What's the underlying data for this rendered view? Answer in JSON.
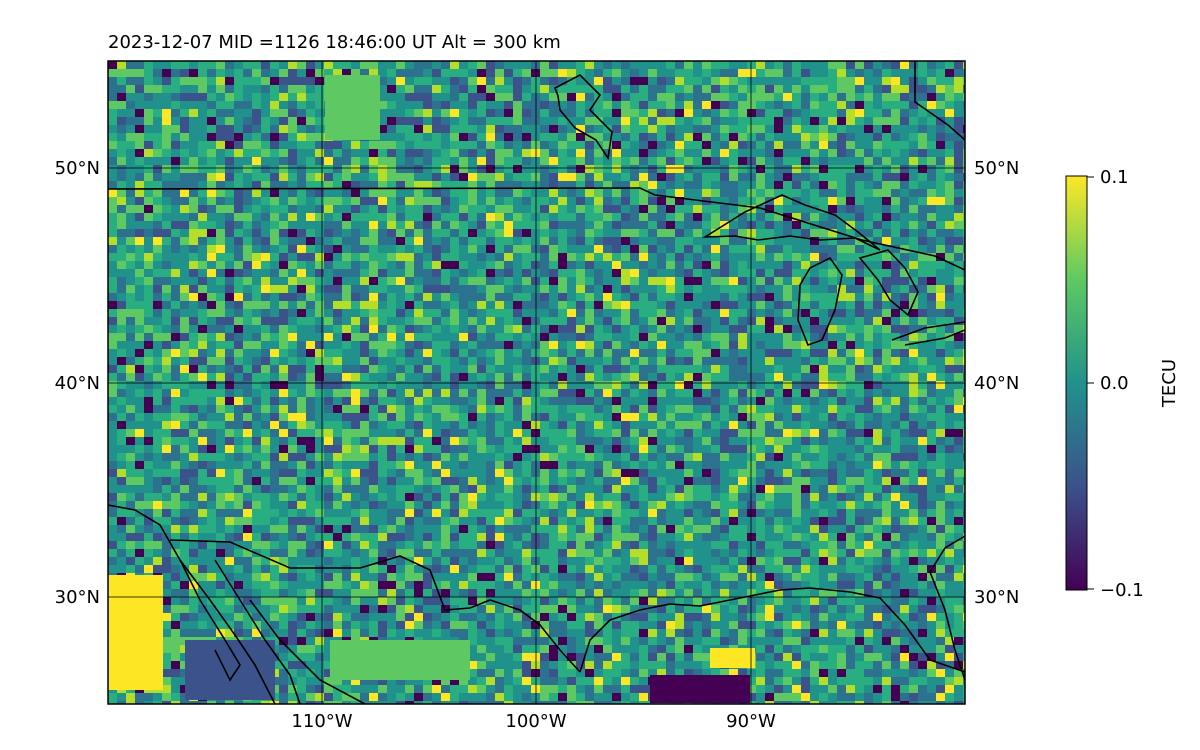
{
  "title": "2023-12-07  MID =1126    18:46:00  UT  Alt = 300 km",
  "lon_labels": [
    "110°W",
    "100°W",
    "90°W"
  ],
  "lat_labels": [
    "50°N",
    "40°N",
    "30°N"
  ],
  "colorbar": {
    "label": "TECU",
    "ticks": [
      "0.1",
      "0.0",
      "−0.1"
    ],
    "range": [
      -0.1,
      0.1
    ],
    "colormap": [
      "#440154",
      "#3b528b",
      "#21918c",
      "#5ec962",
      "#fde725"
    ]
  },
  "map": {
    "projection": "equirectangular",
    "lon_range": [
      -120,
      -80
    ],
    "lat_range": [
      25,
      55
    ],
    "grid_lons": [
      -110,
      -100,
      -90
    ],
    "grid_lats": [
      30,
      40,
      50
    ],
    "field_mean_color": "#21918c"
  }
}
